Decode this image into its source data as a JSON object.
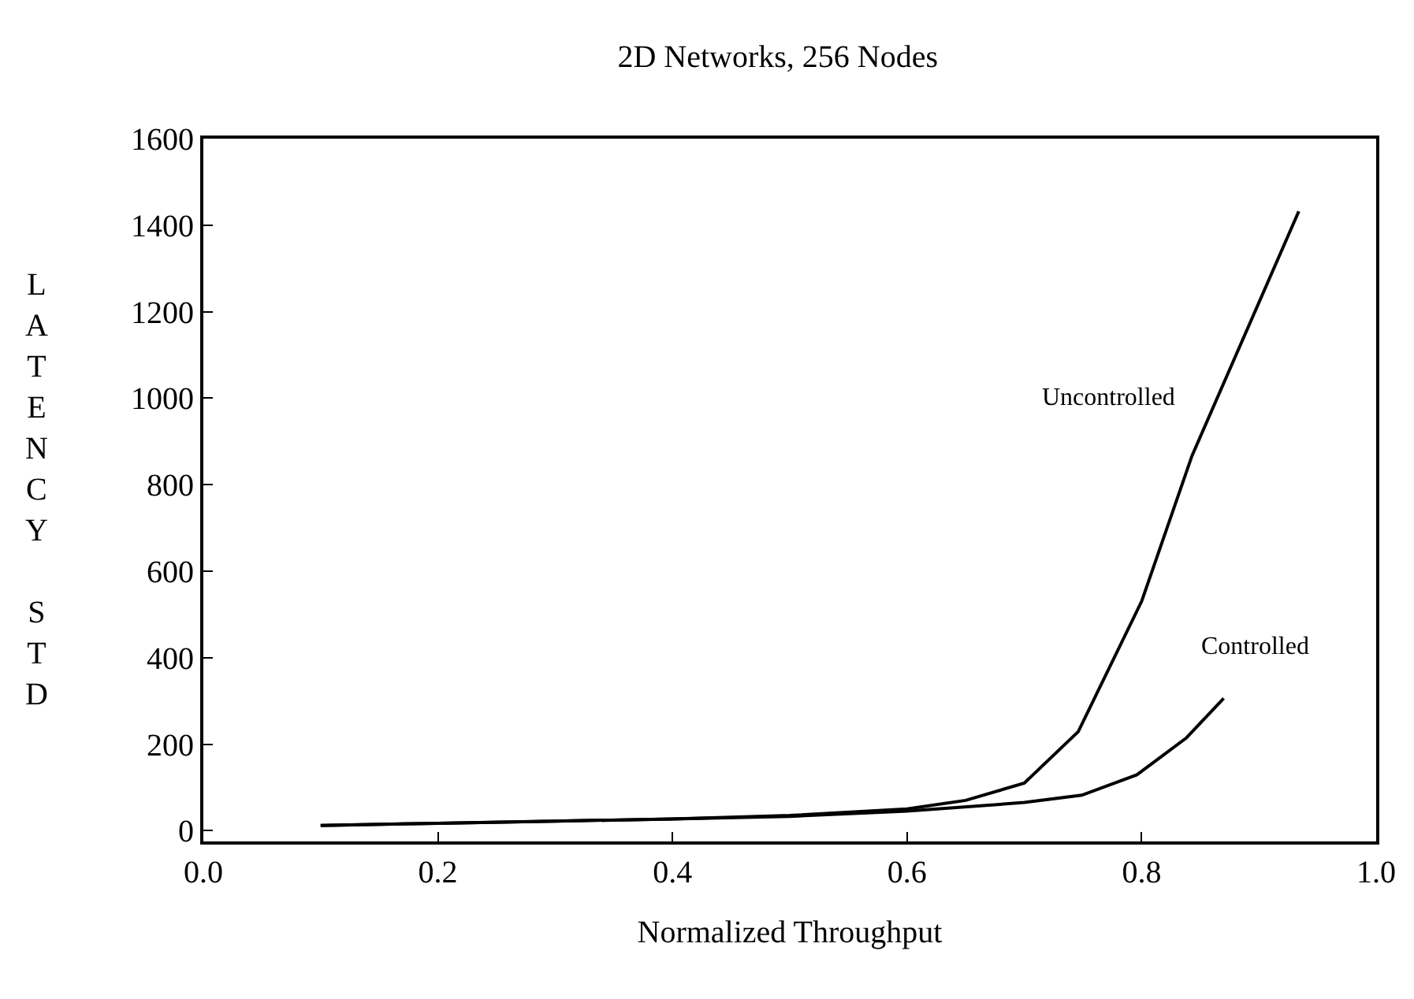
{
  "chart_data": {
    "type": "line",
    "title": "2D Networks, 256 Nodes",
    "xlabel": "Normalized Throughput",
    "ylabel": "LATENCY STD",
    "xlim": [
      0,
      1
    ],
    "xticks": [
      {
        "value": 0,
        "label": "0.0"
      },
      0.2,
      0.4,
      0.6,
      0.8,
      {
        "value": 1,
        "label": "1.0"
      }
    ],
    "ylim": [
      -25,
      1600
    ],
    "yticks": [
      0,
      200,
      400,
      600,
      800,
      1000,
      1200,
      1400,
      1600
    ],
    "legend": false,
    "marker": "none",
    "line_style": "solid",
    "series": [
      {
        "name": "Uncontrolled",
        "color": "#000000",
        "x": [
          0.1,
          0.2,
          0.3,
          0.4,
          0.5,
          0.6,
          0.65,
          0.7,
          0.746,
          0.8,
          0.843,
          0.934
        ],
        "values": [
          12,
          17,
          22,
          27,
          35,
          50,
          70,
          110,
          229,
          530,
          867,
          1432
        ]
      },
      {
        "name": "Controlled",
        "color": "#000000",
        "x": [
          0.1,
          0.2,
          0.3,
          0.4,
          0.5,
          0.6,
          0.7,
          0.749,
          0.796,
          0.838,
          0.87
        ],
        "values": [
          12,
          17,
          22,
          27,
          33,
          45,
          65,
          82,
          129,
          214,
          306
        ]
      }
    ]
  }
}
